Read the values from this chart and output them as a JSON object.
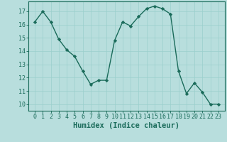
{
  "x": [
    0,
    1,
    2,
    3,
    4,
    5,
    6,
    7,
    8,
    9,
    10,
    11,
    12,
    13,
    14,
    15,
    16,
    17,
    18,
    19,
    20,
    21,
    22,
    23
  ],
  "y": [
    16.2,
    17.0,
    16.2,
    14.9,
    14.1,
    13.6,
    12.5,
    11.5,
    11.8,
    11.8,
    14.8,
    16.2,
    15.9,
    16.6,
    17.2,
    17.4,
    17.2,
    16.8,
    12.5,
    10.8,
    11.6,
    10.9,
    10.0,
    10.0
  ],
  "line_color": "#1a6b5a",
  "marker": "D",
  "marker_size": 2.2,
  "bg_color": "#b8dedd",
  "grid_color": "#9acfcc",
  "xlabel": "Humidex (Indice chaleur)",
  "ylim": [
    9.5,
    17.75
  ],
  "yticks": [
    10,
    11,
    12,
    13,
    14,
    15,
    16,
    17
  ],
  "xticks": [
    0,
    1,
    2,
    3,
    4,
    5,
    6,
    7,
    8,
    9,
    10,
    11,
    12,
    13,
    14,
    15,
    16,
    17,
    18,
    19,
    20,
    21,
    22,
    23
  ],
  "tick_color": "#1a6b5a",
  "label_color": "#1a6b5a",
  "xlabel_fontsize": 7.5,
  "tick_fontsize": 6.0,
  "linewidth": 1.0
}
